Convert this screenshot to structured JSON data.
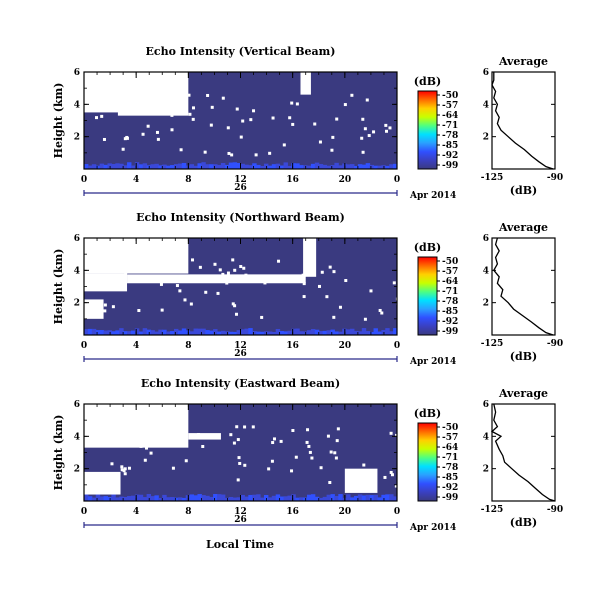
{
  "page": {
    "xlabel": "Local Time"
  },
  "colorscale": {
    "unit": "(dB)",
    "ticks": [
      "-50",
      "-57",
      "-64",
      "-71",
      "-78",
      "-85",
      "-92",
      "-99"
    ],
    "stops": [
      "#ff0000",
      "#ff6a00",
      "#ffd000",
      "#c8ff00",
      "#50ff80",
      "#00e0ff",
      "#2aa0ff",
      "#3050ff",
      "#3a40c0",
      "#3a3a80"
    ]
  },
  "chart_data": [
    {
      "type": "heatmap",
      "title": "Echo Intensity (Vertical Beam)",
      "ylabel": "Height (km)",
      "ylim": [
        0,
        6
      ],
      "yticks": [
        "6",
        "4",
        "2"
      ],
      "xlim": [
        0,
        24
      ],
      "xticks": [
        "0",
        "4",
        "8",
        "12",
        "16",
        "20",
        "0"
      ],
      "date_label": "26",
      "date_suffix": "Apr 2014",
      "background_color": "#3a3a80",
      "no_data_regions": [
        {
          "x0": 0,
          "x1": 8.0,
          "y0": 3.5,
          "y1": 6.0
        },
        {
          "x0": 2.6,
          "x1": 8.0,
          "y0": 3.3,
          "y1": 3.55
        },
        {
          "x0": 16.6,
          "x1": 17.4,
          "y0": 4.6,
          "y1": 6.0
        }
      ],
      "average_profile": {
        "title": "Average",
        "xlabel": "(dB)",
        "xlim": [
          -125,
          -90
        ],
        "xticks": [
          "-125",
          "-90"
        ],
        "ylim": [
          0,
          6
        ],
        "yticks": [
          "6",
          "4",
          "2"
        ],
        "points": [
          [
            -124,
            6.0
          ],
          [
            -124,
            5.5
          ],
          [
            -125,
            5.2
          ],
          [
            -123,
            4.8
          ],
          [
            -124,
            4.4
          ],
          [
            -122,
            4.0
          ],
          [
            -123,
            3.6
          ],
          [
            -121,
            3.2
          ],
          [
            -122,
            2.8
          ],
          [
            -120,
            2.4
          ],
          [
            -116,
            2.0
          ],
          [
            -112,
            1.6
          ],
          [
            -107,
            1.2
          ],
          [
            -103,
            0.8
          ],
          [
            -99,
            0.45
          ],
          [
            -95,
            0.15
          ],
          [
            -91,
            0.0
          ]
        ]
      }
    },
    {
      "type": "heatmap",
      "title": "Echo Intensity (Northward Beam)",
      "ylabel": "Height (km)",
      "ylim": [
        0,
        6
      ],
      "yticks": [
        "6",
        "4",
        "2"
      ],
      "xlim": [
        0,
        24
      ],
      "xticks": [
        "0",
        "4",
        "8",
        "12",
        "16",
        "20",
        "0"
      ],
      "date_label": "26",
      "date_suffix": "Apr 2014",
      "background_color": "#3a3a80",
      "no_data_regions": [
        {
          "x0": 0,
          "x1": 8.0,
          "y0": 3.8,
          "y1": 6.0
        },
        {
          "x0": 0,
          "x1": 3.3,
          "y0": 2.7,
          "y1": 3.8
        },
        {
          "x0": 3.3,
          "x1": 17.0,
          "y0": 3.2,
          "y1": 3.75
        },
        {
          "x0": 16.8,
          "x1": 17.8,
          "y0": 3.6,
          "y1": 6.0
        },
        {
          "x0": 0,
          "x1": 1.5,
          "y0": 1.0,
          "y1": 2.2
        }
      ],
      "average_profile": {
        "title": "Average",
        "xlabel": "(dB)",
        "xlim": [
          -125,
          -90
        ],
        "xticks": [
          "-125",
          "-90"
        ],
        "ylim": [
          0,
          6
        ],
        "yticks": [
          "6",
          "4",
          "2"
        ],
        "points": [
          [
            -122,
            6.0
          ],
          [
            -123,
            5.6
          ],
          [
            -121,
            5.2
          ],
          [
            -123,
            4.8
          ],
          [
            -122,
            4.4
          ],
          [
            -124,
            4.0
          ],
          [
            -121,
            3.6
          ],
          [
            -122,
            3.2
          ],
          [
            -119,
            2.8
          ],
          [
            -120,
            2.4
          ],
          [
            -116,
            2.0
          ],
          [
            -113,
            1.6
          ],
          [
            -108,
            1.2
          ],
          [
            -103,
            0.8
          ],
          [
            -99,
            0.45
          ],
          [
            -95,
            0.15
          ],
          [
            -91,
            0.0
          ]
        ]
      }
    },
    {
      "type": "heatmap",
      "title": "Echo Intensity (Eastward Beam)",
      "ylabel": "Height (km)",
      "ylim": [
        0,
        6
      ],
      "yticks": [
        "6",
        "4",
        "2"
      ],
      "xlim": [
        0,
        24
      ],
      "xticks": [
        "0",
        "4",
        "8",
        "12",
        "16",
        "20",
        "0"
      ],
      "date_label": "26",
      "date_suffix": "Apr 2014",
      "background_color": "#3a3a80",
      "no_data_regions": [
        {
          "x0": 0,
          "x1": 8.0,
          "y0": 3.3,
          "y1": 6.0
        },
        {
          "x0": 8.0,
          "x1": 10.5,
          "y0": 3.8,
          "y1": 4.2
        },
        {
          "x0": 0,
          "x1": 2.8,
          "y0": 0.4,
          "y1": 1.8
        },
        {
          "x0": 20.0,
          "x1": 22.5,
          "y0": 0.5,
          "y1": 2.0
        }
      ],
      "average_profile": {
        "title": "Average",
        "xlabel": "(dB)",
        "xlim": [
          -125,
          -90
        ],
        "xticks": [
          "-125",
          "-90"
        ],
        "ylim": [
          0,
          6
        ],
        "yticks": [
          "6",
          "4",
          "2"
        ],
        "points": [
          [
            -124,
            6.0
          ],
          [
            -123,
            5.5
          ],
          [
            -124,
            5.0
          ],
          [
            -122,
            4.6
          ],
          [
            -125,
            4.3
          ],
          [
            -120,
            4.0
          ],
          [
            -123,
            3.7
          ],
          [
            -121,
            3.2
          ],
          [
            -119,
            2.8
          ],
          [
            -118,
            2.4
          ],
          [
            -114,
            2.0
          ],
          [
            -110,
            1.6
          ],
          [
            -105,
            1.2
          ],
          [
            -101,
            0.8
          ],
          [
            -97,
            0.4
          ],
          [
            -93,
            0.1
          ],
          [
            -90,
            0.0
          ]
        ]
      }
    }
  ]
}
